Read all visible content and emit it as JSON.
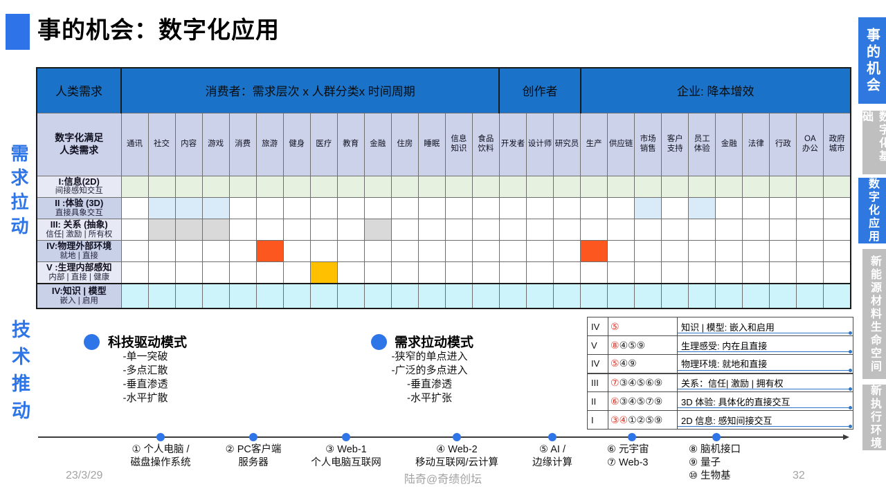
{
  "title": "事的机会：数字化应用",
  "left_labels": {
    "demand_pull": "需求拉动",
    "tech_push": "技术推动"
  },
  "sidebar": {
    "tabs": [
      {
        "label": "事的机会",
        "active": true
      },
      {
        "label": "数字化基础",
        "active": false
      },
      {
        "label": "数字化应用",
        "active": true
      },
      {
        "label": "新能源材料生命空间",
        "active": false
      },
      {
        "label": "新执行环境",
        "active": false
      }
    ]
  },
  "matrix": {
    "corner_top": "人类需求",
    "corner_bottom": "数字化满足\n人类需求",
    "groups": [
      {
        "label": "消费者：需求层次 x 人群分类x 时间周期",
        "span": 14
      },
      {
        "label": "创作者",
        "span": 3
      },
      {
        "label": "企业: 降本增效",
        "span": 10
      }
    ],
    "columns": [
      "通讯",
      "社交",
      "内容",
      "游戏",
      "消费",
      "旅游",
      "健身",
      "医疗",
      "教育",
      "金融",
      "住房",
      "睡眠",
      "信息\n知识",
      "食品\n饮料",
      "开发者",
      "设计师",
      "研究员",
      "生产",
      "供应链",
      "市场\n销售",
      "客户\n支持",
      "员工\n体验",
      "金融",
      "法律",
      "行政",
      "OA\n办公",
      "政府\n城市"
    ],
    "rows": [
      {
        "title": "I:信息(2D)",
        "subtitle": "间接感知交互",
        "fill": "green",
        "cells": "all"
      },
      {
        "title": "II :体验 (3D)",
        "subtitle": "直接具象交互",
        "fill": "blue",
        "cells": [
          2,
          3,
          4,
          20,
          22
        ]
      },
      {
        "title": "III:  关系 (抽象)",
        "subtitle": "信任| 激励 | 所有权",
        "fill": "gray",
        "cells": [
          2,
          3,
          4,
          10
        ]
      },
      {
        "title": "IV:物理外部环境",
        "subtitle": "就地 | 直接",
        "fill": "orange",
        "cells": [
          6,
          18
        ]
      },
      {
        "title": "V :生理内部感知",
        "subtitle": "内部 | 直接 | 健康",
        "fill": "yellow",
        "cells": [
          8
        ]
      },
      {
        "title": "IV:知识 | 模型",
        "subtitle": "嵌入 | 启用",
        "fill": "cyan",
        "cells": "all"
      }
    ],
    "fills": {
      "green": "#e7f1df",
      "blue": "#d9eaf8",
      "gray": "#d9d9d9",
      "orange": "#fb571e",
      "yellow": "#ffc000",
      "cyan": "#cdf4fa"
    }
  },
  "legends": [
    {
      "title": "科技驱动模式",
      "items": [
        "-单一突破",
        "-多点汇散",
        "-垂直渗透",
        "-水平扩散"
      ]
    },
    {
      "title": "需求拉动模式",
      "items": [
        "-狭窄的单点进入",
        "-广泛的多点进入",
        "-垂直渗透",
        "-水平扩张"
      ]
    }
  ],
  "summary_table": {
    "rows": [
      {
        "level": "IV",
        "nums_red": "⑤",
        "nums_black": "",
        "desc": "知识 | 模型: 嵌入和启用"
      },
      {
        "level": "V",
        "nums_red": "⑧",
        "nums_black": "④⑤⑨",
        "desc": "生理感受: 内在且直接"
      },
      {
        "level": "IV",
        "nums_red": "⑤",
        "nums_black": "④⑨",
        "desc": "物理环境: 就地和直接"
      },
      {
        "level": "III",
        "nums_red": "⑦",
        "nums_black": "③④⑤⑥⑨",
        "desc": "关系：信任| 激励 | 拥有权"
      },
      {
        "level": "II",
        "nums_red": "⑥",
        "nums_black": "③④⑤⑦⑨",
        "desc": "3D 体验: 具体化的直接交互"
      },
      {
        "level": "I",
        "nums_red": "③④",
        "nums_black": "①②⑤⑨",
        "desc": "2D 信息: 感知间接交互"
      }
    ]
  },
  "timeline": {
    "milestones": [
      {
        "lines": [
          "① 个人电脑 /",
          "磁盘操作系统"
        ]
      },
      {
        "lines": [
          "② PC客户端",
          "服务器"
        ]
      },
      {
        "lines": [
          "③ Web-1",
          "个人电脑互联网"
        ]
      },
      {
        "lines": [
          "④ Web-2",
          "移动互联网/云计算"
        ]
      },
      {
        "lines": [
          "⑤ AI /",
          "边缘计算"
        ]
      },
      {
        "lines": [
          "⑥ 元宇宙",
          "⑦ Web-3"
        ]
      },
      {
        "lines": [
          "⑧ 脑机接口",
          "⑨ 量子",
          "⑩ 生物基"
        ]
      }
    ]
  },
  "footer": {
    "date": "23/3/29",
    "credit": "陆奇@奇绩创坛",
    "page": "32"
  },
  "colors": {
    "accent_blue": "#2e75e8",
    "header_blue": "#1a73c8",
    "tab_gray": "#bfbfbf"
  }
}
